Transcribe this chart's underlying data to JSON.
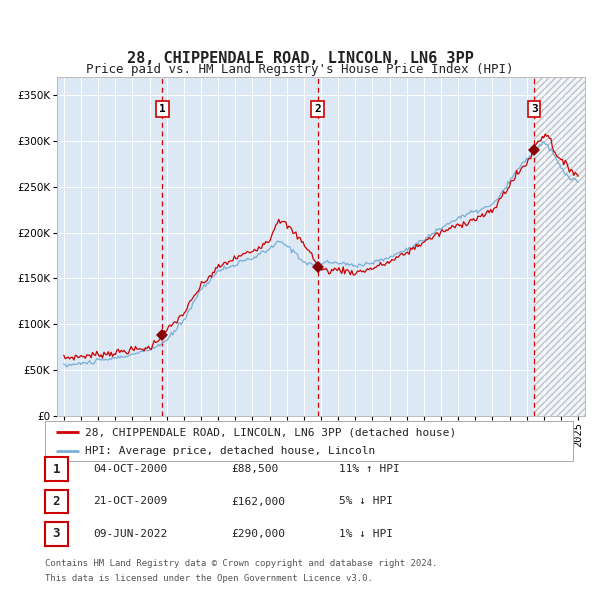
{
  "title": "28, CHIPPENDALE ROAD, LINCOLN, LN6 3PP",
  "subtitle": "Price paid vs. HM Land Registry's House Price Index (HPI)",
  "ylim": [
    0,
    370000
  ],
  "yticks": [
    0,
    50000,
    100000,
    150000,
    200000,
    250000,
    300000,
    350000
  ],
  "ytick_labels": [
    "£0",
    "£50K",
    "£100K",
    "£150K",
    "£200K",
    "£250K",
    "£300K",
    "£350K"
  ],
  "x_start_year": 1995,
  "x_end_year": 2025,
  "background_color": "#ffffff",
  "plot_bg_color": "#dce9f5",
  "grid_color": "#ffffff",
  "sale_dates": [
    2000.75,
    2009.8,
    2022.44
  ],
  "sale_prices": [
    88500,
    162000,
    290000
  ],
  "sale_labels": [
    "1",
    "2",
    "3"
  ],
  "red_line_color": "#cc0000",
  "blue_line_color": "#7aaed6",
  "marker_color": "#880000",
  "dashed_line_color": "#cc0000",
  "legend_label_red": "28, CHIPPENDALE ROAD, LINCOLN, LN6 3PP (detached house)",
  "legend_label_blue": "HPI: Average price, detached house, Lincoln",
  "table_entries": [
    {
      "num": "1",
      "date": "04-OCT-2000",
      "price": "£88,500",
      "hpi": "11% ↑ HPI"
    },
    {
      "num": "2",
      "date": "21-OCT-2009",
      "price": "£162,000",
      "hpi": "5% ↓ HPI"
    },
    {
      "num": "3",
      "date": "09-JUN-2022",
      "price": "£290,000",
      "hpi": "1% ↓ HPI"
    }
  ],
  "footnote1": "Contains HM Land Registry data © Crown copyright and database right 2024.",
  "footnote2": "This data is licensed under the Open Government Licence v3.0.",
  "title_fontsize": 11,
  "subtitle_fontsize": 9,
  "tick_fontsize": 7.5,
  "legend_fontsize": 8,
  "table_fontsize": 8,
  "footnote_fontsize": 6.5
}
